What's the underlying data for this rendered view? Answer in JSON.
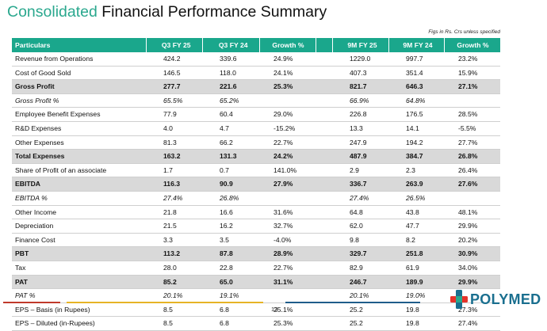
{
  "title": {
    "part1": "Consolidated",
    "part2": " Financial Performance Summary"
  },
  "note": "Figs in Rs. Crs unless specified",
  "table": {
    "headers": [
      "Particulars",
      "Q3 FY 25",
      "Q3 FY 24",
      "Growth %",
      "9M FY 25",
      "9M FY 24",
      "Growth %"
    ],
    "rows": [
      {
        "style": "normal",
        "cells": [
          "Revenue from Operations",
          "424.2",
          "339.6",
          "24.9%",
          "1229.0",
          "997.7",
          "23.2%"
        ]
      },
      {
        "style": "normal",
        "cells": [
          "Cost of Good Sold",
          "146.5",
          "118.0",
          "24.1%",
          "407.3",
          "351.4",
          "15.9%"
        ]
      },
      {
        "style": "bold",
        "cells": [
          "Gross Profit",
          "277.7",
          "221.6",
          "25.3%",
          "821.7",
          "646.3",
          "27.1%"
        ]
      },
      {
        "style": "italic",
        "cells": [
          "Gross Profit %",
          "65.5%",
          "65.2%",
          "",
          "66.9%",
          "64.8%",
          ""
        ]
      },
      {
        "style": "normal",
        "cells": [
          "Employee Benefit Expenses",
          "77.9",
          "60.4",
          "29.0%",
          "226.8",
          "176.5",
          "28.5%"
        ]
      },
      {
        "style": "normal",
        "cells": [
          "R&D Expenses",
          "4.0",
          "4.7",
          "-15.2%",
          "13.3",
          "14.1",
          "-5.5%"
        ]
      },
      {
        "style": "normal",
        "cells": [
          "Other Expenses",
          "81.3",
          "66.2",
          "22.7%",
          "247.9",
          "194.2",
          "27.7%"
        ]
      },
      {
        "style": "bold",
        "cells": [
          "Total Expenses",
          "163.2",
          "131.3",
          "24.2%",
          "487.9",
          "384.7",
          "26.8%"
        ]
      },
      {
        "style": "normal",
        "cells": [
          "Share of Profit of an associate",
          "1.7",
          "0.7",
          "141.0%",
          "2.9",
          "2.3",
          "26.4%"
        ]
      },
      {
        "style": "bold",
        "cells": [
          "EBITDA",
          "116.3",
          "90.9",
          "27.9%",
          "336.7",
          "263.9",
          "27.6%"
        ]
      },
      {
        "style": "italic",
        "cells": [
          "EBITDA %",
          "27.4%",
          "26.8%",
          "",
          "27.4%",
          "26.5%",
          ""
        ]
      },
      {
        "style": "normal",
        "cells": [
          "Other Income",
          "21.8",
          "16.6",
          "31.6%",
          "64.8",
          "43.8",
          "48.1%"
        ]
      },
      {
        "style": "normal",
        "cells": [
          "Depreciation",
          "21.5",
          "16.2",
          "32.7%",
          "62.0",
          "47.7",
          "29.9%"
        ]
      },
      {
        "style": "normal",
        "cells": [
          "Finance Cost",
          "3.3",
          "3.5",
          "-4.0%",
          "9.8",
          "8.2",
          "20.2%"
        ]
      },
      {
        "style": "bold",
        "cells": [
          "PBT",
          "113.2",
          "87.8",
          "28.9%",
          "329.7",
          "251.8",
          "30.9%"
        ]
      },
      {
        "style": "normal",
        "cells": [
          "Tax",
          "28.0",
          "22.8",
          "22.7%",
          "82.9",
          "61.9",
          "34.0%"
        ]
      },
      {
        "style": "bold",
        "cells": [
          "PAT",
          "85.2",
          "65.0",
          "31.1%",
          "246.7",
          "189.9",
          "29.9%"
        ]
      },
      {
        "style": "italic",
        "cells": [
          "PAT %",
          "20.1%",
          "19.1%",
          "",
          "20.1%",
          "19.0%",
          ""
        ]
      },
      {
        "style": "normal",
        "cells": [
          "EPS – Basis (in Rupees)",
          "8.5",
          "6.8",
          "25.1%",
          "25.2",
          "19.8",
          "27.3%"
        ]
      },
      {
        "style": "normal",
        "cells": [
          "EPS – Diluted (in-Rupees)",
          "8.5",
          "6.8",
          "25.3%",
          "25.2",
          "19.8",
          "27.4%"
        ]
      }
    ]
  },
  "footer": {
    "page_number": "13",
    "logo_text": "POLYMED",
    "line_colors": [
      "#c0392b",
      "#e6b325",
      "#1f5d8a"
    ]
  }
}
